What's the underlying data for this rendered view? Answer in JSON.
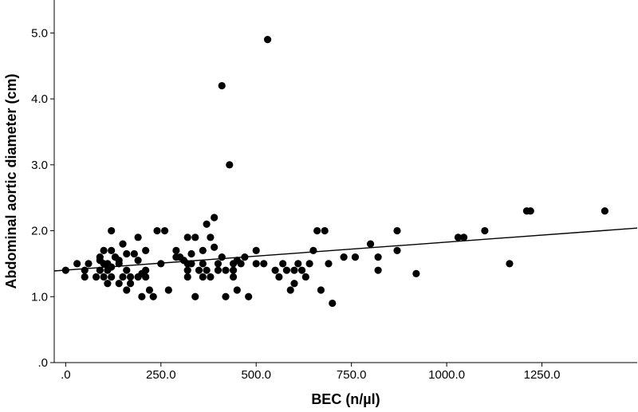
{
  "chart_data": {
    "type": "scatter",
    "title": "",
    "xlabel": "BEC (n/µl)",
    "ylabel": "Abdominal aortic diameter (cm)",
    "xlim": [
      -30,
      1500
    ],
    "ylim": [
      0,
      5.5
    ],
    "x_ticks": [
      {
        "value": 0,
        "label": ".0"
      },
      {
        "value": 250,
        "label": "250.0"
      },
      {
        "value": 500,
        "label": "500.0"
      },
      {
        "value": 750,
        "label": "750.0"
      },
      {
        "value": 1000,
        "label": "1000.0"
      },
      {
        "value": 1250,
        "label": "1250.0"
      }
    ],
    "y_ticks": [
      {
        "value": 0,
        "label": ".0"
      },
      {
        "value": 1,
        "label": "1.0"
      },
      {
        "value": 2,
        "label": "2.0"
      },
      {
        "value": 3,
        "label": "3.0"
      },
      {
        "value": 4,
        "label": "4.0"
      },
      {
        "value": 5,
        "label": "5.0"
      }
    ],
    "grid": false,
    "legend": "none",
    "fit_line": {
      "x": [
        -30,
        1500
      ],
      "y": [
        1.39,
        2.04
      ]
    },
    "points": [
      {
        "x": 0,
        "y": 1.4
      },
      {
        "x": 30,
        "y": 1.5
      },
      {
        "x": 50,
        "y": 1.3
      },
      {
        "x": 50,
        "y": 1.4
      },
      {
        "x": 60,
        "y": 1.5
      },
      {
        "x": 80,
        "y": 1.3
      },
      {
        "x": 90,
        "y": 1.6
      },
      {
        "x": 90,
        "y": 1.55
      },
      {
        "x": 90,
        "y": 1.4
      },
      {
        "x": 100,
        "y": 1.7
      },
      {
        "x": 100,
        "y": 1.5
      },
      {
        "x": 100,
        "y": 1.3
      },
      {
        "x": 110,
        "y": 1.4
      },
      {
        "x": 110,
        "y": 1.5
      },
      {
        "x": 110,
        "y": 1.2
      },
      {
        "x": 120,
        "y": 1.7
      },
      {
        "x": 120,
        "y": 1.45
      },
      {
        "x": 120,
        "y": 1.3
      },
      {
        "x": 120,
        "y": 2.0
      },
      {
        "x": 130,
        "y": 1.6
      },
      {
        "x": 140,
        "y": 1.2
      },
      {
        "x": 140,
        "y": 1.5
      },
      {
        "x": 140,
        "y": 1.55
      },
      {
        "x": 150,
        "y": 1.8
      },
      {
        "x": 150,
        "y": 1.3
      },
      {
        "x": 160,
        "y": 1.4
      },
      {
        "x": 160,
        "y": 1.65
      },
      {
        "x": 160,
        "y": 1.1
      },
      {
        "x": 170,
        "y": 1.3
      },
      {
        "x": 170,
        "y": 1.2
      },
      {
        "x": 180,
        "y": 1.65
      },
      {
        "x": 190,
        "y": 1.9
      },
      {
        "x": 190,
        "y": 1.3
      },
      {
        "x": 190,
        "y": 1.55
      },
      {
        "x": 200,
        "y": 1.35
      },
      {
        "x": 200,
        "y": 1.0
      },
      {
        "x": 210,
        "y": 1.4
      },
      {
        "x": 210,
        "y": 1.3
      },
      {
        "x": 210,
        "y": 1.7
      },
      {
        "x": 220,
        "y": 1.1
      },
      {
        "x": 230,
        "y": 1.0
      },
      {
        "x": 240,
        "y": 2.0
      },
      {
        "x": 250,
        "y": 1.5
      },
      {
        "x": 260,
        "y": 2.0
      },
      {
        "x": 270,
        "y": 1.1
      },
      {
        "x": 290,
        "y": 1.6
      },
      {
        "x": 290,
        "y": 1.7
      },
      {
        "x": 300,
        "y": 1.6
      },
      {
        "x": 310,
        "y": 1.55
      },
      {
        "x": 320,
        "y": 1.9
      },
      {
        "x": 320,
        "y": 1.5
      },
      {
        "x": 320,
        "y": 1.4
      },
      {
        "x": 320,
        "y": 1.3
      },
      {
        "x": 330,
        "y": 1.5
      },
      {
        "x": 330,
        "y": 1.65
      },
      {
        "x": 340,
        "y": 1.9
      },
      {
        "x": 340,
        "y": 1.0
      },
      {
        "x": 350,
        "y": 1.4
      },
      {
        "x": 360,
        "y": 1.5
      },
      {
        "x": 360,
        "y": 1.3
      },
      {
        "x": 360,
        "y": 1.7
      },
      {
        "x": 370,
        "y": 1.4
      },
      {
        "x": 370,
        "y": 2.1
      },
      {
        "x": 380,
        "y": 1.9
      },
      {
        "x": 380,
        "y": 1.3
      },
      {
        "x": 390,
        "y": 2.2
      },
      {
        "x": 390,
        "y": 1.75
      },
      {
        "x": 400,
        "y": 1.4
      },
      {
        "x": 400,
        "y": 1.5
      },
      {
        "x": 410,
        "y": 4.2
      },
      {
        "x": 410,
        "y": 1.6
      },
      {
        "x": 420,
        "y": 1.4
      },
      {
        "x": 420,
        "y": 1.0
      },
      {
        "x": 430,
        "y": 3.0
      },
      {
        "x": 440,
        "y": 1.3
      },
      {
        "x": 440,
        "y": 1.4
      },
      {
        "x": 440,
        "y": 1.5
      },
      {
        "x": 450,
        "y": 1.55
      },
      {
        "x": 450,
        "y": 1.1
      },
      {
        "x": 460,
        "y": 1.5
      },
      {
        "x": 470,
        "y": 1.6
      },
      {
        "x": 480,
        "y": 1.0
      },
      {
        "x": 500,
        "y": 1.7
      },
      {
        "x": 500,
        "y": 1.5
      },
      {
        "x": 520,
        "y": 1.5
      },
      {
        "x": 530,
        "y": 4.9
      },
      {
        "x": 550,
        "y": 1.4
      },
      {
        "x": 560,
        "y": 1.3
      },
      {
        "x": 570,
        "y": 1.5
      },
      {
        "x": 580,
        "y": 1.4
      },
      {
        "x": 590,
        "y": 1.1
      },
      {
        "x": 600,
        "y": 1.2
      },
      {
        "x": 600,
        "y": 1.4
      },
      {
        "x": 610,
        "y": 1.5
      },
      {
        "x": 620,
        "y": 1.4
      },
      {
        "x": 630,
        "y": 1.3
      },
      {
        "x": 640,
        "y": 1.5
      },
      {
        "x": 650,
        "y": 1.7
      },
      {
        "x": 660,
        "y": 2.0
      },
      {
        "x": 670,
        "y": 1.1
      },
      {
        "x": 680,
        "y": 2.0
      },
      {
        "x": 690,
        "y": 1.5
      },
      {
        "x": 700,
        "y": 0.9
      },
      {
        "x": 730,
        "y": 1.6
      },
      {
        "x": 760,
        "y": 1.6
      },
      {
        "x": 800,
        "y": 1.8
      },
      {
        "x": 820,
        "y": 1.6
      },
      {
        "x": 820,
        "y": 1.4
      },
      {
        "x": 870,
        "y": 2.0
      },
      {
        "x": 870,
        "y": 1.7
      },
      {
        "x": 920,
        "y": 1.35
      },
      {
        "x": 1030,
        "y": 1.9
      },
      {
        "x": 1045,
        "y": 1.9
      },
      {
        "x": 1100,
        "y": 2.0
      },
      {
        "x": 1165,
        "y": 1.5
      },
      {
        "x": 1210,
        "y": 2.3
      },
      {
        "x": 1220,
        "y": 2.3
      },
      {
        "x": 1415,
        "y": 2.3
      }
    ]
  }
}
